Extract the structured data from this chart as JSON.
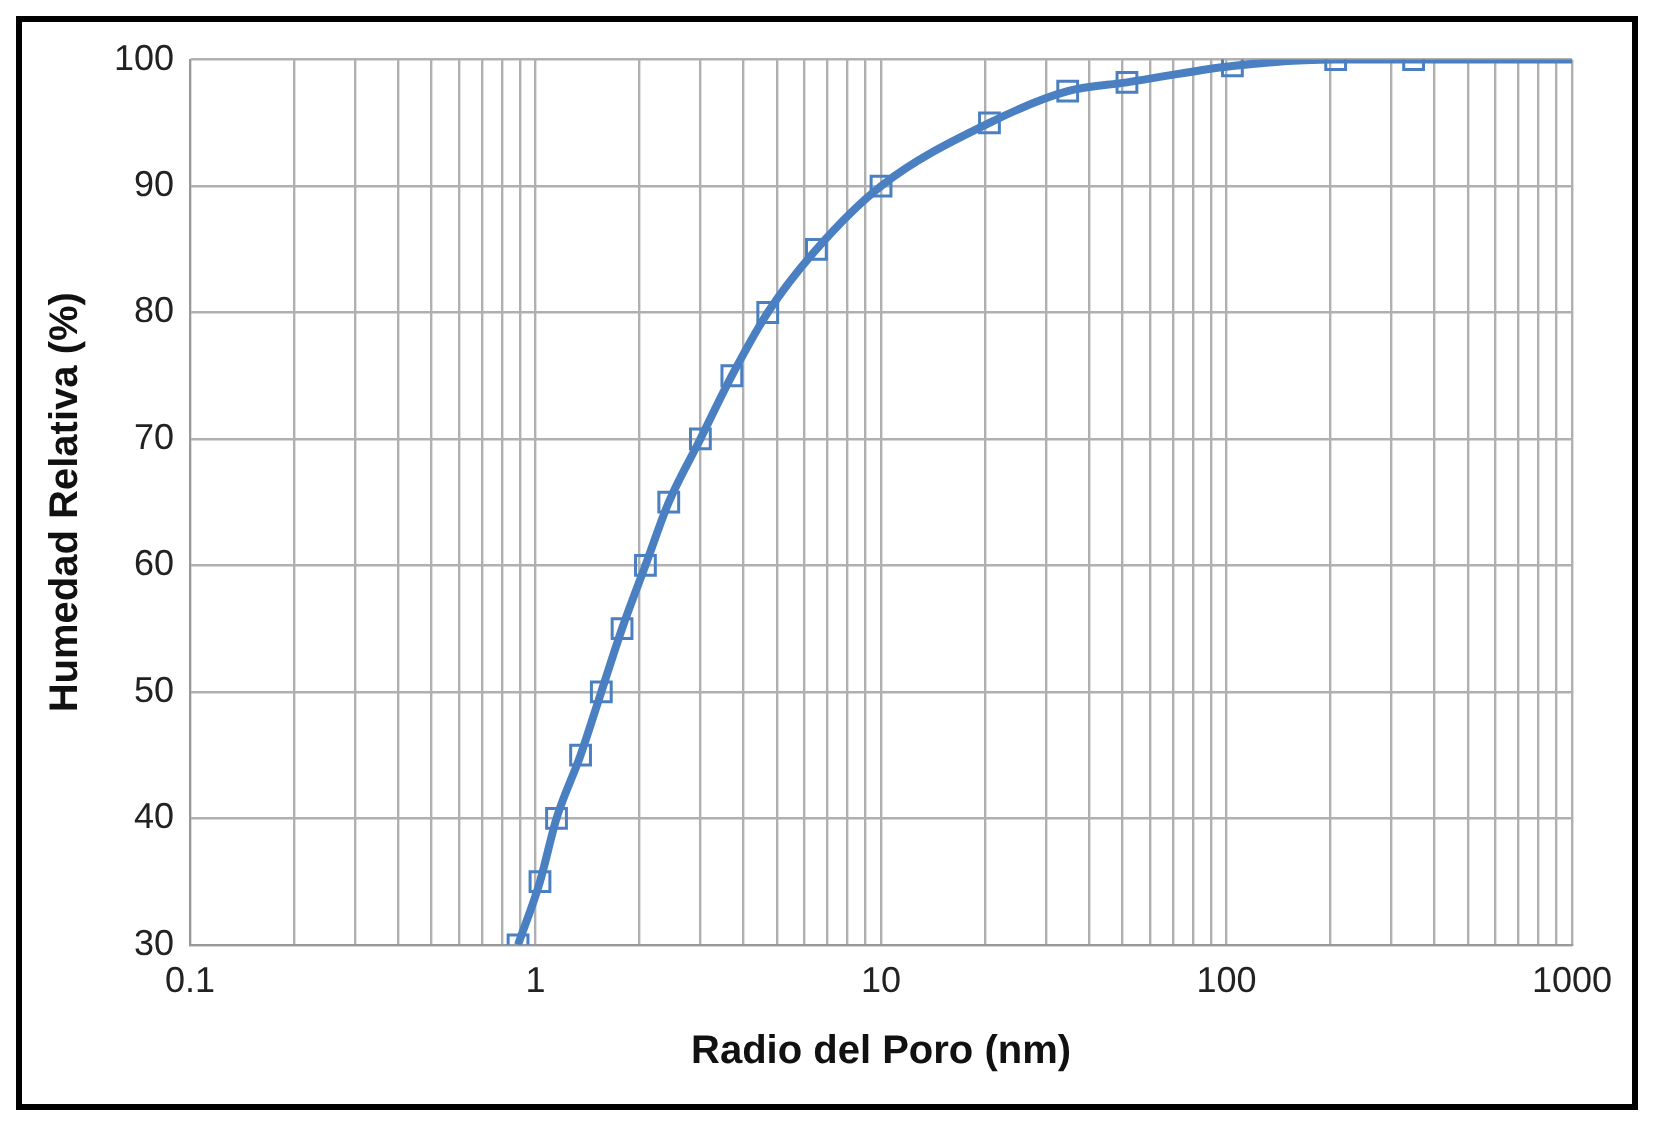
{
  "chart_data": {
    "type": "scatter",
    "xlabel": "Radio del Poro (nm)",
    "ylabel": "Humedad Relativa (%)",
    "log": "x",
    "xlim": [
      0.1,
      1000
    ],
    "ylim": [
      30,
      100
    ],
    "xticks": [
      0.1,
      {
        "value": 0.2,
        "label": null
      },
      {
        "value": 0.3,
        "label": null
      },
      {
        "value": 0.4,
        "label": null
      },
      {
        "value": 0.5,
        "label": null
      },
      {
        "value": 0.6,
        "label": null
      },
      {
        "value": 0.7,
        "label": null
      },
      {
        "value": 0.8,
        "label": null
      },
      {
        "value": 0.9,
        "label": null
      },
      1,
      {
        "value": 2,
        "label": null
      },
      {
        "value": 3,
        "label": null
      },
      {
        "value": 4,
        "label": null
      },
      {
        "value": 5,
        "label": null
      },
      {
        "value": 6,
        "label": null
      },
      {
        "value": 7,
        "label": null
      },
      {
        "value": 8,
        "label": null
      },
      {
        "value": 9,
        "label": null
      },
      10,
      {
        "value": 20,
        "label": null
      },
      {
        "value": 30,
        "label": null
      },
      {
        "value": 40,
        "label": null
      },
      {
        "value": 50,
        "label": null
      },
      {
        "value": 60,
        "label": null
      },
      {
        "value": 70,
        "label": null
      },
      {
        "value": 80,
        "label": null
      },
      {
        "value": 90,
        "label": null
      },
      100,
      {
        "value": 200,
        "label": null
      },
      {
        "value": 300,
        "label": null
      },
      {
        "value": 400,
        "label": null
      },
      {
        "value": 500,
        "label": null
      },
      {
        "value": 600,
        "label": null
      },
      {
        "value": 700,
        "label": null
      },
      {
        "value": 800,
        "label": null
      },
      {
        "value": 900,
        "label": null
      },
      1000
    ],
    "yticks": [
      30,
      40,
      50,
      60,
      70,
      80,
      90,
      100
    ],
    "grid": true,
    "series": [
      {
        "type": "scatter",
        "marker": "square",
        "color": "#4a7fc1",
        "x": [
          0.89,
          1.03,
          1.15,
          1.35,
          1.55,
          1.78,
          2.08,
          2.43,
          3.0,
          3.7,
          4.7,
          6.5,
          10,
          20.6,
          34.7,
          51.5,
          104,
          207,
          348
        ],
        "values": [
          30,
          35,
          40,
          45,
          50,
          55,
          60,
          65,
          70,
          75,
          80,
          85,
          90,
          95,
          97.5,
          98.2,
          99.5,
          100,
          100
        ]
      },
      {
        "type": "line",
        "marker": "none",
        "color": "#4a7fc1",
        "x": [
          0.89,
          1.03,
          1.15,
          1.35,
          1.55,
          1.78,
          2.08,
          2.43,
          3.0,
          3.7,
          4.7,
          6.5,
          10,
          20.6,
          34.7,
          51.5,
          104,
          207,
          348,
          1000
        ],
        "values": [
          30,
          35,
          40,
          45,
          50,
          55,
          60,
          65,
          70,
          75,
          80,
          85,
          90,
          95,
          97.5,
          98.2,
          99.5,
          100,
          100,
          100
        ]
      }
    ]
  }
}
